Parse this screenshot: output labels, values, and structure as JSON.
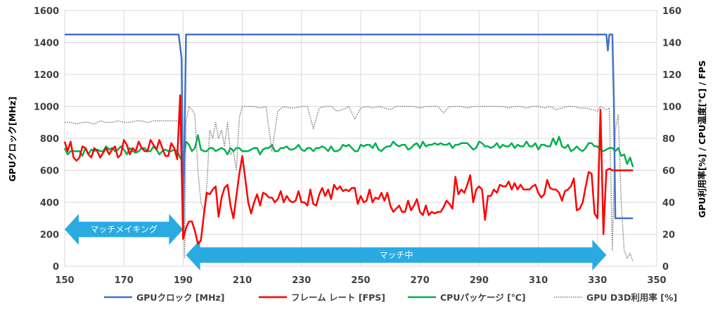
{
  "chart_data": {
    "type": "line",
    "x_range": [
      150,
      350
    ],
    "x_ticks": [
      150,
      170,
      190,
      210,
      230,
      250,
      270,
      290,
      310,
      330,
      350
    ],
    "y_left": {
      "label": "GPUクロック[MHz]",
      "range": [
        0,
        1600
      ],
      "ticks": [
        0,
        200,
        400,
        600,
        800,
        1000,
        1200,
        1400,
        1600
      ]
    },
    "y_right": {
      "label": "GPU利用率[%] / CPU温度[℃] / FPS",
      "range": [
        0,
        160
      ],
      "ticks": [
        0,
        20,
        40,
        60,
        80,
        100,
        120,
        140,
        160
      ]
    },
    "grid": true,
    "legend_position": "bottom",
    "annotations": [
      {
        "text": "マッチメイキング",
        "x_from": 150,
        "x_to": 190,
        "y": 23,
        "axis": "right",
        "color": "#29ABE2"
      },
      {
        "text": "マッチ中",
        "x_from": 191,
        "x_to": 333,
        "y": 7,
        "axis": "right",
        "color": "#29ABE2"
      }
    ],
    "series": [
      {
        "name": "GPUクロック [MHz]",
        "axis": "left",
        "color": "#4472C4",
        "style": "solid",
        "width": 2.5,
        "x": [
          150,
          188.5,
          189.5,
          190,
          191,
          333,
          333.5,
          334,
          335,
          335.5,
          336,
          336.5,
          340,
          342
        ],
        "y": [
          1450,
          1450,
          1300,
          180,
          1450,
          1450,
          1350,
          1450,
          1450,
          1050,
          300,
          300,
          300,
          300
        ]
      },
      {
        "name": "フレーム レート [FPS]",
        "axis": "right",
        "color": "#FF0000",
        "style": "solid",
        "width": 2.5,
        "x": [
          150,
          151,
          152,
          153,
          154,
          155,
          156,
          157,
          158,
          159,
          160,
          161,
          162,
          163,
          164,
          165,
          166,
          167,
          168,
          169,
          170,
          171,
          172,
          173,
          174,
          175,
          176,
          177,
          178,
          179,
          180,
          181,
          182,
          183,
          184,
          185,
          186,
          187,
          188,
          189,
          190,
          191,
          192,
          193,
          194,
          195,
          196,
          197,
          198,
          199,
          200,
          201,
          202,
          203,
          204,
          205,
          206,
          207,
          208,
          209,
          210,
          211,
          212,
          213,
          214,
          215,
          216,
          217,
          218,
          219,
          220,
          221,
          222,
          223,
          224,
          225,
          226,
          227,
          228,
          229,
          230,
          231,
          232,
          233,
          234,
          235,
          236,
          237,
          238,
          239,
          240,
          241,
          242,
          243,
          244,
          245,
          246,
          247,
          248,
          249,
          250,
          251,
          252,
          253,
          254,
          255,
          256,
          257,
          258,
          259,
          260,
          261,
          262,
          263,
          264,
          265,
          266,
          267,
          268,
          269,
          270,
          271,
          272,
          273,
          274,
          275,
          276,
          277,
          278,
          279,
          280,
          281,
          282,
          283,
          284,
          285,
          286,
          287,
          288,
          289,
          290,
          291,
          292,
          293,
          294,
          295,
          296,
          297,
          298,
          299,
          300,
          301,
          302,
          303,
          304,
          305,
          306,
          307,
          308,
          309,
          310,
          311,
          312,
          313,
          314,
          315,
          316,
          317,
          318,
          319,
          320,
          321,
          322,
          323,
          324,
          325,
          326,
          327,
          328,
          329,
          330,
          331,
          332,
          333,
          334,
          335,
          336,
          337,
          338,
          339,
          340,
          341,
          342
        ],
        "y": [
          78,
          72,
          78,
          68,
          66,
          68,
          75,
          74,
          70,
          68,
          74,
          72,
          68,
          71,
          74,
          70,
          73,
          75,
          68,
          70,
          79,
          76,
          70,
          74,
          72,
          78,
          74,
          72,
          72,
          79,
          76,
          73,
          79,
          74,
          69,
          69,
          77,
          74,
          67,
          107,
          17,
          24,
          28,
          28,
          22,
          14,
          16,
          32,
          46,
          45,
          48,
          50,
          31,
          43,
          49,
          51,
          38,
          30,
          44,
          58,
          69,
          55,
          40,
          33,
          40,
          45,
          38,
          46,
          45,
          43,
          43,
          40,
          42,
          47,
          40,
          44,
          41,
          40,
          41,
          47,
          40,
          40,
          38,
          48,
          39,
          38,
          45,
          49,
          44,
          48,
          42,
          51,
          48,
          50,
          47,
          48,
          47,
          49,
          49,
          39,
          44,
          40,
          41,
          48,
          40,
          43,
          42,
          46,
          41,
          46,
          38,
          34,
          36,
          38,
          34,
          34,
          41,
          35,
          38,
          42,
          34,
          32,
          38,
          32,
          34,
          33,
          34,
          34,
          37,
          41,
          39,
          36,
          56,
          45,
          48,
          46,
          51,
          57,
          40,
          48,
          50,
          48,
          29,
          44,
          44,
          48,
          46,
          51,
          50,
          50,
          53,
          48,
          52,
          48,
          51,
          48,
          48,
          48,
          50,
          51,
          46,
          43,
          45,
          54,
          49,
          48,
          48,
          46,
          41,
          47,
          48,
          50,
          55,
          35,
          36,
          40,
          50,
          59,
          58,
          33,
          30,
          98,
          20,
          60,
          61,
          60,
          60,
          60,
          60,
          60,
          60,
          60,
          60
        ]
      },
      {
        "name": "CPUパッケージ [℃]",
        "axis": "right",
        "color": "#00B050",
        "style": "solid",
        "width": 2.5,
        "x": [
          150,
          151,
          152,
          153,
          154,
          155,
          156,
          157,
          158,
          159,
          160,
          161,
          162,
          163,
          164,
          165,
          166,
          167,
          168,
          169,
          170,
          171,
          172,
          173,
          174,
          175,
          176,
          177,
          178,
          179,
          180,
          181,
          182,
          183,
          184,
          185,
          186,
          187,
          188,
          189,
          190,
          191,
          192,
          193,
          194,
          195,
          196,
          197,
          198,
          199,
          200,
          201,
          202,
          203,
          204,
          205,
          206,
          207,
          208,
          209,
          210,
          211,
          212,
          213,
          214,
          215,
          216,
          217,
          218,
          219,
          220,
          221,
          222,
          223,
          224,
          225,
          226,
          227,
          228,
          229,
          230,
          231,
          232,
          233,
          234,
          235,
          236,
          237,
          238,
          239,
          240,
          241,
          242,
          243,
          244,
          245,
          246,
          247,
          248,
          249,
          250,
          251,
          252,
          253,
          254,
          255,
          256,
          257,
          258,
          259,
          260,
          261,
          262,
          263,
          264,
          265,
          266,
          267,
          268,
          269,
          270,
          271,
          272,
          273,
          274,
          275,
          276,
          277,
          278,
          279,
          280,
          281,
          282,
          283,
          284,
          285,
          286,
          287,
          288,
          289,
          290,
          291,
          292,
          293,
          294,
          295,
          296,
          297,
          298,
          299,
          300,
          301,
          302,
          303,
          304,
          305,
          306,
          307,
          308,
          309,
          310,
          311,
          312,
          313,
          314,
          315,
          316,
          317,
          318,
          319,
          320,
          321,
          322,
          323,
          324,
          325,
          326,
          327,
          328,
          329,
          330,
          331,
          332,
          333,
          334,
          335,
          336,
          337,
          338,
          339,
          340,
          341,
          342
        ],
        "y": [
          74,
          70,
          72,
          72,
          72,
          72,
          69,
          74,
          70,
          73,
          72,
          73,
          72,
          72,
          75,
          73,
          74,
          72,
          73,
          75,
          73,
          70,
          74,
          72,
          71,
          72,
          74,
          74,
          72,
          72,
          75,
          73,
          70,
          72,
          73,
          72,
          72,
          73,
          72,
          68,
          65,
          78,
          76,
          72,
          74,
          82,
          73,
          72,
          72,
          74,
          74,
          72,
          73,
          74,
          73,
          70,
          74,
          72,
          74,
          74,
          72,
          72,
          72,
          73,
          74,
          74,
          70,
          73,
          74,
          74,
          76,
          72,
          72,
          74,
          74,
          75,
          73,
          73,
          74,
          76,
          73,
          72,
          74,
          74,
          72,
          74,
          74,
          75,
          74,
          72,
          75,
          72,
          72,
          73,
          76,
          75,
          76,
          74,
          72,
          72,
          76,
          75,
          76,
          76,
          74,
          77,
          73,
          72,
          74,
          75,
          75,
          78,
          76,
          75,
          76,
          76,
          73,
          74,
          76,
          77,
          74,
          78,
          75,
          76,
          76,
          77,
          76,
          77,
          76,
          76,
          77,
          74,
          76,
          76,
          77,
          77,
          77,
          75,
          73,
          74,
          78,
          77,
          75,
          75,
          74,
          75,
          77,
          74,
          76,
          75,
          75,
          77,
          74,
          76,
          75,
          75,
          78,
          75,
          75,
          77,
          73,
          76,
          76,
          75,
          75,
          80,
          76,
          81,
          75,
          74,
          76,
          72,
          73,
          75,
          73,
          72,
          74,
          77,
          77,
          75,
          75,
          73,
          72,
          73,
          74,
          74,
          72,
          74,
          69,
          70,
          64,
          68,
          62
        ]
      },
      {
        "name": "GPU D3D利用率 [%]",
        "axis": "right",
        "color": "#7F7F7F",
        "style": "dotted",
        "width": 1.5,
        "x": [
          150,
          152,
          154,
          156,
          158,
          160,
          162,
          164,
          166,
          168,
          170,
          172,
          174,
          176,
          178,
          180,
          182,
          184,
          186,
          188,
          189,
          190,
          190.5,
          191,
          192,
          193,
          194,
          195,
          196,
          197,
          198,
          199,
          200,
          201,
          202,
          203,
          204,
          205,
          206,
          207,
          208,
          209,
          210,
          212,
          214,
          216,
          218,
          220,
          222,
          224,
          226,
          228,
          230,
          232,
          234,
          236,
          238,
          240,
          242,
          244,
          246,
          248,
          250,
          252,
          254,
          256,
          258,
          260,
          262,
          264,
          266,
          268,
          270,
          272,
          274,
          276,
          278,
          280,
          282,
          284,
          286,
          288,
          290,
          292,
          294,
          296,
          298,
          300,
          302,
          304,
          306,
          308,
          310,
          312,
          314,
          316,
          318,
          320,
          322,
          324,
          326,
          328,
          330,
          331,
          332,
          333,
          334,
          335,
          336,
          337,
          338,
          339,
          340,
          341,
          342
        ],
        "y": [
          90,
          90,
          89,
          90,
          90,
          89,
          91,
          90,
          90,
          91,
          90,
          90,
          91,
          91,
          90,
          91,
          91,
          91,
          91,
          91,
          90,
          70,
          5,
          90,
          100,
          98,
          95,
          60,
          40,
          35,
          50,
          85,
          80,
          90,
          80,
          85,
          75,
          90,
          70,
          72,
          60,
          93,
          100,
          100,
          100,
          99,
          100,
          72,
          97,
          100,
          99,
          99,
          100,
          100,
          86,
          99,
          100,
          100,
          97,
          98,
          100,
          92,
          99,
          100,
          99,
          100,
          99,
          98,
          100,
          100,
          100,
          100,
          99,
          100,
          100,
          100,
          96,
          100,
          100,
          100,
          99,
          100,
          100,
          100,
          100,
          100,
          100,
          99,
          100,
          100,
          99,
          100,
          100,
          99,
          100,
          98,
          99,
          100,
          100,
          99,
          99,
          98,
          97,
          100,
          99,
          98,
          99,
          10,
          85,
          95,
          40,
          10,
          5,
          8,
          3
        ]
      }
    ]
  }
}
